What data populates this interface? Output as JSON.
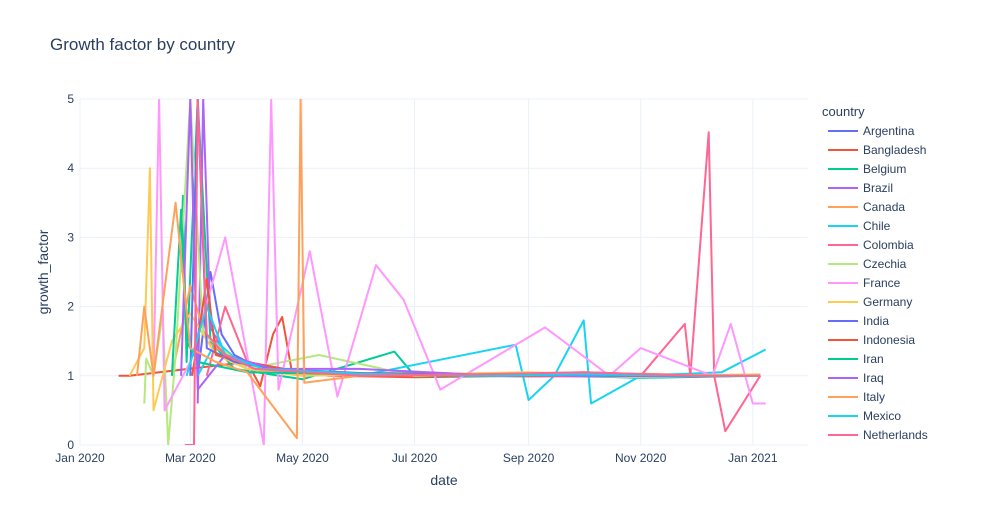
{
  "chart_data": {
    "type": "line",
    "title": "Growth factor by country",
    "xlabel": "date",
    "ylabel": "growth_factor",
    "legend_title": "country",
    "legend_position": "right",
    "grid": true,
    "x_range": [
      "2020-01-01",
      "2021-01-31"
    ],
    "ylim": [
      0,
      5
    ],
    "x_ticks": [
      {
        "date": "2020-01-01",
        "label": "Jan 2020"
      },
      {
        "date": "2020-03-01",
        "label": "Mar 2020"
      },
      {
        "date": "2020-05-01",
        "label": "May 2020"
      },
      {
        "date": "2020-07-01",
        "label": "Jul 2020"
      },
      {
        "date": "2020-09-01",
        "label": "Sep 2020"
      },
      {
        "date": "2020-11-01",
        "label": "Nov 2020"
      },
      {
        "date": "2021-01-01",
        "label": "Jan 2021"
      }
    ],
    "y_ticks": [
      0,
      1,
      2,
      3,
      4,
      5
    ],
    "series": [
      {
        "name": "Argentina",
        "color": "#636efa",
        "points": [
          [
            "2020-03-05",
            1.0
          ],
          [
            "2020-03-12",
            2.5
          ],
          [
            "2020-03-18",
            1.6
          ],
          [
            "2020-03-25",
            1.3
          ],
          [
            "2020-04-05",
            1.15
          ],
          [
            "2020-05-01",
            1.05
          ],
          [
            "2020-07-01",
            1.02
          ],
          [
            "2020-09-01",
            1.0
          ],
          [
            "2020-11-01",
            0.98
          ],
          [
            "2021-01-05",
            1.02
          ]
        ]
      },
      {
        "name": "Bangladesh",
        "color": "#EF553B",
        "points": [
          [
            "2020-01-22",
            1.0
          ],
          [
            "2020-01-28",
            1.0
          ],
          [
            "2020-04-01",
            1.2
          ],
          [
            "2020-04-08",
            0.85
          ],
          [
            "2020-04-15",
            1.6
          ],
          [
            "2020-04-20",
            1.85
          ],
          [
            "2020-04-25",
            1.1
          ],
          [
            "2020-05-15",
            1.0
          ],
          [
            "2020-07-01",
            0.98
          ],
          [
            "2020-09-01",
            1.0
          ],
          [
            "2020-11-01",
            1.01
          ],
          [
            "2021-01-05",
            1.0
          ]
        ]
      },
      {
        "name": "Belgium",
        "color": "#00cc96",
        "points": [
          [
            "2020-02-25",
            2.5
          ],
          [
            "2020-02-26",
            3.6
          ],
          [
            "2020-02-28",
            1.2
          ],
          [
            "2020-03-05",
            5.0
          ],
          [
            "2020-03-12",
            1.5
          ],
          [
            "2020-03-25",
            1.1
          ],
          [
            "2020-05-01",
            0.95
          ],
          [
            "2020-06-20",
            1.35
          ],
          [
            "2020-07-01",
            1.0
          ],
          [
            "2020-09-01",
            1.02
          ],
          [
            "2020-11-01",
            0.97
          ],
          [
            "2021-01-05",
            1.0
          ]
        ]
      },
      {
        "name": "Brazil",
        "color": "#ab63fa",
        "points": [
          [
            "2020-03-05",
            0.6
          ],
          [
            "2020-03-08",
            5.0
          ],
          [
            "2020-03-12",
            1.7
          ],
          [
            "2020-03-20",
            1.3
          ],
          [
            "2020-04-05",
            1.1
          ],
          [
            "2020-05-01",
            1.05
          ],
          [
            "2020-07-01",
            1.01
          ],
          [
            "2020-09-01",
            0.99
          ],
          [
            "2020-11-01",
            1.02
          ],
          [
            "2021-01-05",
            1.0
          ]
        ]
      },
      {
        "name": "Canada",
        "color": "#FFA15A",
        "points": [
          [
            "2020-02-20",
            1.0
          ],
          [
            "2020-03-01",
            2.3
          ],
          [
            "2020-03-10",
            1.5
          ],
          [
            "2020-04-01",
            1.1
          ],
          [
            "2020-05-01",
            1.0
          ],
          [
            "2020-07-01",
            1.05
          ],
          [
            "2020-09-01",
            1.0
          ],
          [
            "2020-11-01",
            1.03
          ],
          [
            "2021-01-05",
            1.0
          ]
        ]
      },
      {
        "name": "Chile",
        "color": "#19d3f3",
        "points": [
          [
            "2020-03-05",
            1.0
          ],
          [
            "2020-03-15",
            1.5
          ],
          [
            "2020-04-01",
            1.1
          ],
          [
            "2020-06-01",
            1.0
          ],
          [
            "2020-08-25",
            1.45
          ],
          [
            "2020-09-01",
            0.65
          ],
          [
            "2020-09-15",
            1.0
          ],
          [
            "2020-10-01",
            1.8
          ],
          [
            "2020-10-05",
            0.6
          ],
          [
            "2020-11-01",
            1.0
          ],
          [
            "2020-12-15",
            1.05
          ],
          [
            "2021-01-08",
            1.38
          ]
        ]
      },
      {
        "name": "Colombia",
        "color": "#FF6692",
        "points": [
          [
            "2020-03-10",
            1.0
          ],
          [
            "2020-03-20",
            2.0
          ],
          [
            "2020-04-01",
            1.2
          ],
          [
            "2020-05-01",
            1.05
          ],
          [
            "2020-07-01",
            1.02
          ],
          [
            "2020-09-01",
            0.99
          ],
          [
            "2020-11-01",
            1.0
          ],
          [
            "2020-11-25",
            1.75
          ],
          [
            "2020-11-28",
            1.0
          ],
          [
            "2020-12-08",
            4.52
          ],
          [
            "2020-12-11",
            1.0
          ],
          [
            "2020-12-17",
            0.2
          ],
          [
            "2021-01-05",
            1.0
          ]
        ]
      },
      {
        "name": "Czechia",
        "color": "#B6E880",
        "points": [
          [
            "2020-02-05",
            0.6
          ],
          [
            "2020-02-06",
            1.25
          ],
          [
            "2020-02-10",
            1.0
          ],
          [
            "2020-02-15",
            1.9
          ],
          [
            "2020-02-18",
            0.0
          ],
          [
            "2020-02-22",
            1.3
          ],
          [
            "2020-03-01",
            5.0
          ],
          [
            "2020-03-08",
            1.6
          ],
          [
            "2020-04-01",
            1.1
          ],
          [
            "2020-05-10",
            1.3
          ],
          [
            "2020-07-01",
            1.0
          ],
          [
            "2020-09-01",
            1.02
          ],
          [
            "2020-11-01",
            0.98
          ],
          [
            "2021-01-05",
            1.0
          ]
        ]
      },
      {
        "name": "France",
        "color": "#FF97FF",
        "points": [
          [
            "2020-02-10",
            1.0
          ],
          [
            "2020-02-13",
            5.0
          ],
          [
            "2020-02-16",
            0.5
          ],
          [
            "2020-03-01",
            1.2
          ],
          [
            "2020-03-20",
            3.0
          ],
          [
            "2020-04-10",
            0.0
          ],
          [
            "2020-04-14",
            5.0
          ],
          [
            "2020-04-18",
            0.8
          ],
          [
            "2020-05-05",
            2.8
          ],
          [
            "2020-05-20",
            0.7
          ],
          [
            "2020-06-10",
            2.6
          ],
          [
            "2020-06-25",
            2.1
          ],
          [
            "2020-07-15",
            0.8
          ],
          [
            "2020-09-10",
            1.7
          ],
          [
            "2020-10-15",
            1.0
          ],
          [
            "2020-11-01",
            1.4
          ],
          [
            "2020-12-10",
            1.0
          ],
          [
            "2020-12-20",
            1.75
          ],
          [
            "2021-01-01",
            0.6
          ],
          [
            "2021-01-08",
            0.6
          ]
        ]
      },
      {
        "name": "Germany",
        "color": "#FECB52",
        "points": [
          [
            "2020-01-28",
            1.0
          ],
          [
            "2020-02-05",
            1.4
          ],
          [
            "2020-02-08",
            4.0
          ],
          [
            "2020-02-10",
            0.5
          ],
          [
            "2020-02-20",
            1.5
          ],
          [
            "2020-03-01",
            1.9
          ],
          [
            "2020-03-15",
            1.3
          ],
          [
            "2020-04-01",
            1.1
          ],
          [
            "2020-05-01",
            1.0
          ],
          [
            "2020-07-01",
            1.02
          ],
          [
            "2020-09-01",
            1.05
          ],
          [
            "2020-11-01",
            1.0
          ],
          [
            "2021-01-05",
            1.02
          ]
        ]
      },
      {
        "name": "India",
        "color": "#636efa",
        "points": [
          [
            "2020-03-01",
            1.0
          ],
          [
            "2020-03-05",
            5.0
          ],
          [
            "2020-03-10",
            1.4
          ],
          [
            "2020-03-25",
            1.2
          ],
          [
            "2020-04-15",
            1.1
          ],
          [
            "2020-06-01",
            1.04
          ],
          [
            "2020-08-01",
            1.02
          ],
          [
            "2020-10-01",
            1.0
          ],
          [
            "2020-12-01",
            0.99
          ],
          [
            "2021-01-05",
            1.0
          ]
        ]
      },
      {
        "name": "Indonesia",
        "color": "#EF553B",
        "points": [
          [
            "2020-03-02",
            1.0
          ],
          [
            "2020-03-05",
            1.5
          ],
          [
            "2020-03-10",
            2.4
          ],
          [
            "2020-03-15",
            1.3
          ],
          [
            "2020-04-01",
            1.2
          ],
          [
            "2020-05-01",
            1.05
          ],
          [
            "2020-07-01",
            1.02
          ],
          [
            "2020-09-01",
            1.0
          ],
          [
            "2020-11-01",
            1.01
          ],
          [
            "2021-01-05",
            1.0
          ]
        ]
      },
      {
        "name": "Iran",
        "color": "#00cc96",
        "points": [
          [
            "2020-02-20",
            1.0
          ],
          [
            "2020-02-25",
            3.4
          ],
          [
            "2020-02-28",
            1.5
          ],
          [
            "2020-03-05",
            1.2
          ],
          [
            "2020-04-01",
            1.05
          ],
          [
            "2020-06-01",
            1.02
          ],
          [
            "2020-08-01",
            1.0
          ],
          [
            "2020-10-01",
            1.01
          ],
          [
            "2020-12-01",
            1.0
          ],
          [
            "2021-01-05",
            1.0
          ]
        ]
      },
      {
        "name": "Iraq",
        "color": "#ab63fa",
        "points": [
          [
            "2020-02-25",
            1.0
          ],
          [
            "2020-03-01",
            5.0
          ],
          [
            "2020-03-05",
            0.8
          ],
          [
            "2020-03-20",
            1.3
          ],
          [
            "2020-04-15",
            1.1
          ],
          [
            "2020-06-01",
            1.1
          ],
          [
            "2020-08-01",
            1.02
          ],
          [
            "2020-10-01",
            1.0
          ],
          [
            "2020-12-01",
            1.0
          ],
          [
            "2021-01-05",
            1.0
          ]
        ]
      },
      {
        "name": "Italy",
        "color": "#FFA15A",
        "points": [
          [
            "2020-02-01",
            1.0
          ],
          [
            "2020-02-05",
            2.0
          ],
          [
            "2020-02-10",
            1.0
          ],
          [
            "2020-02-22",
            3.5
          ],
          [
            "2020-03-01",
            1.4
          ],
          [
            "2020-03-15",
            1.2
          ],
          [
            "2020-04-01",
            1.05
          ],
          [
            "2020-04-28",
            0.1
          ],
          [
            "2020-04-30",
            5.0
          ],
          [
            "2020-05-02",
            0.9
          ],
          [
            "2020-06-01",
            1.0
          ],
          [
            "2020-08-01",
            1.02
          ],
          [
            "2020-10-01",
            1.05
          ],
          [
            "2020-12-01",
            1.0
          ],
          [
            "2021-01-05",
            1.0
          ]
        ]
      },
      {
        "name": "Mexico",
        "color": "#19d3f3",
        "points": [
          [
            "2020-02-28",
            1.0
          ],
          [
            "2020-03-10",
            2.0
          ],
          [
            "2020-03-20",
            1.3
          ],
          [
            "2020-04-10",
            1.1
          ],
          [
            "2020-06-01",
            1.03
          ],
          [
            "2020-08-01",
            1.0
          ],
          [
            "2020-10-01",
            1.02
          ],
          [
            "2020-12-01",
            1.0
          ],
          [
            "2021-01-05",
            1.0
          ]
        ]
      },
      {
        "name": "Netherlands",
        "color": "#FF6692",
        "points": [
          [
            "2020-02-27",
            0.0
          ],
          [
            "2020-03-03",
            0.0
          ],
          [
            "2020-03-05",
            5.0
          ],
          [
            "2020-03-10",
            1.6
          ],
          [
            "2020-03-20",
            1.3
          ],
          [
            "2020-04-05",
            1.1
          ],
          [
            "2020-06-01",
            1.0
          ],
          [
            "2020-08-01",
            1.02
          ],
          [
            "2020-10-01",
            1.05
          ],
          [
            "2020-12-01",
            1.0
          ],
          [
            "2021-01-05",
            1.0
          ]
        ]
      }
    ]
  }
}
